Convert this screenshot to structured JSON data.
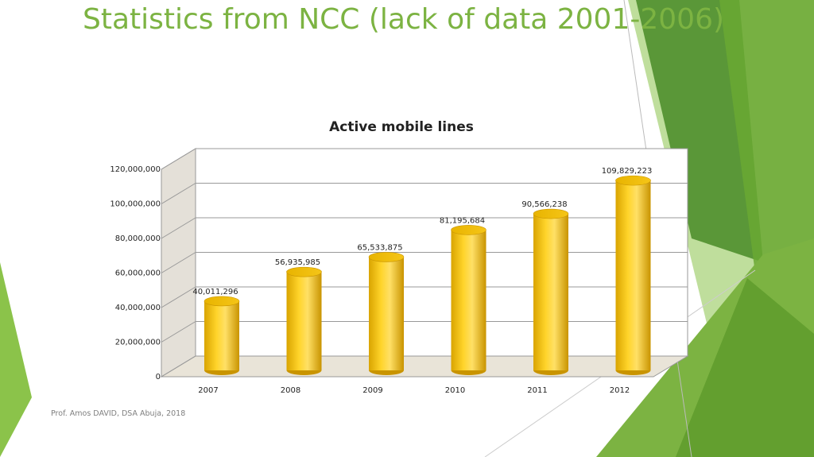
{
  "slide": {
    "title": "Statistics from NCC (lack of data 2001-2006)",
    "footer": "Prof. Amos DAVID, DSA Abuja, 2018"
  },
  "chart_data": {
    "type": "bar",
    "title": "Active mobile lines",
    "categories": [
      "2007",
      "2008",
      "2009",
      "2010",
      "2011",
      "2012"
    ],
    "values": [
      40011296,
      56935985,
      65533875,
      81195684,
      90566238,
      109829223
    ],
    "value_labels": [
      "40,011,296",
      "56,935,985",
      "65,533,875",
      "81,195,684",
      "90,566,238",
      "109,829,223"
    ],
    "color": "#ffd42a",
    "ylim": [
      0,
      120000000
    ],
    "yticks": [
      {
        "value": 0,
        "label": "0"
      },
      {
        "value": 20000000,
        "label": "20,000,000"
      },
      {
        "value": 40000000,
        "label": "40,000,000"
      },
      {
        "value": 60000000,
        "label": "60,000,000"
      },
      {
        "value": 80000000,
        "label": "80,000,000"
      },
      {
        "value": 100000000,
        "label": "100,000,000"
      },
      {
        "value": 120000000,
        "label": "120,000,000"
      }
    ],
    "grid": true
  }
}
